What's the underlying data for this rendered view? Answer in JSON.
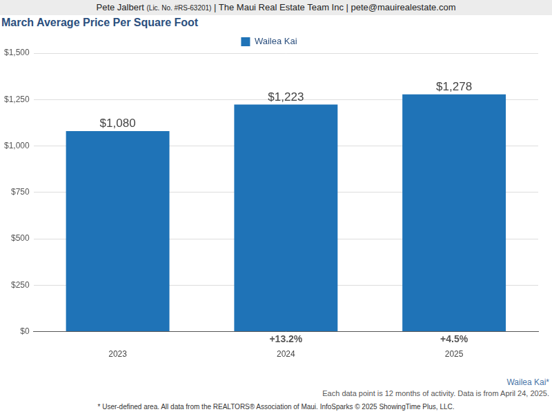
{
  "chart_data": {
    "type": "bar",
    "header": [
      "Pete Jalbert",
      "(Lic. No. #RS-63201)",
      "| The Maui Real Estate Team Inc | pete@mauirealestate.com"
    ],
    "title": "March Average Price Per Square Foot",
    "categories": [
      "2023",
      "2024",
      "2025"
    ],
    "series": [
      {
        "name": "Wailea Kai",
        "color": "#1f73b7",
        "values": [
          1080,
          1223,
          1278
        ]
      }
    ],
    "value_labels": [
      "$1,080",
      "$1,223",
      "$1,278"
    ],
    "changes": [
      null,
      "+13.2%",
      "+4.5%"
    ],
    "ylim": [
      0,
      1500
    ],
    "yticks": [
      {
        "value": 0,
        "label": "$0"
      },
      {
        "value": 250,
        "label": "$250"
      },
      {
        "value": 500,
        "label": "$500"
      },
      {
        "value": 750,
        "label": "$750"
      },
      {
        "value": 1000,
        "label": "$1,000"
      },
      {
        "value": 1250,
        "label": "$1,250"
      },
      {
        "value": 1500,
        "label": "$1,500"
      }
    ],
    "grid": true,
    "legend": "top",
    "data_labels": true,
    "area_label": "Wailea Kai*",
    "notes": [
      "Each data point is 12 months of activity. Data is from April 24, 2025.",
      "* User-defined area. All data from the REALTORS® Association of Maui. InfoSparks © 2025 ShowingTime Plus, LLC."
    ]
  }
}
